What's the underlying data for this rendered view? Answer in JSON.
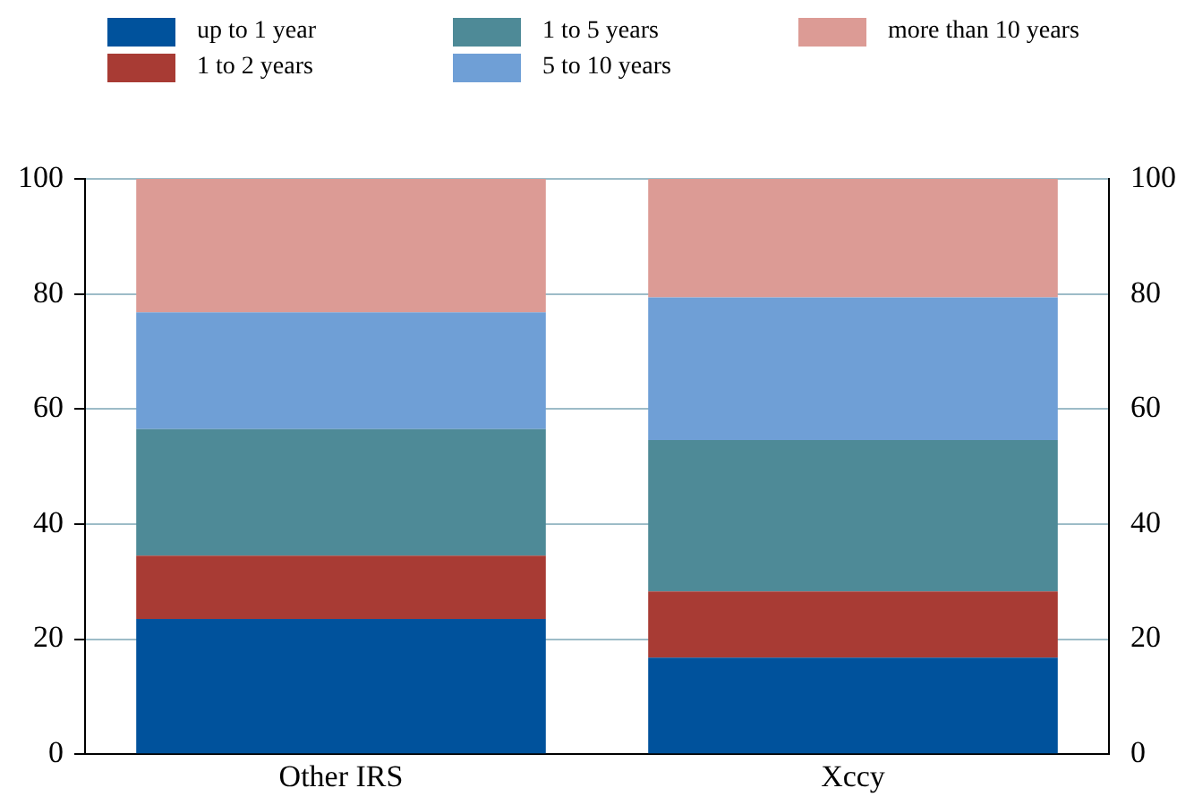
{
  "chart_data": {
    "type": "bar",
    "stacked": true,
    "categories": [
      "Other IRS",
      "Xccy"
    ],
    "series": [
      {
        "name": "up to 1 year",
        "color": "#00529c",
        "values": [
          23.5,
          16.8
        ]
      },
      {
        "name": "1 to 2 years",
        "color": "#a83b34",
        "values": [
          11,
          11.5
        ]
      },
      {
        "name": "1 to 5 years",
        "color": "#4e8a97",
        "values": [
          22,
          26.3
        ]
      },
      {
        "name": "5 to 10 years",
        "color": "#6f9fd6",
        "values": [
          20.3,
          24.8
        ]
      },
      {
        "name": "more than 10 years",
        "color": "#dc9b95",
        "values": [
          23.2,
          20.6
        ]
      }
    ],
    "ylim": [
      0,
      100
    ],
    "yticks": [
      0,
      20,
      40,
      60,
      80,
      100
    ],
    "y2lim": [
      0,
      100
    ],
    "y2ticks": [
      0,
      20,
      40,
      60,
      80,
      100
    ],
    "grid": "y",
    "legend": "top"
  }
}
